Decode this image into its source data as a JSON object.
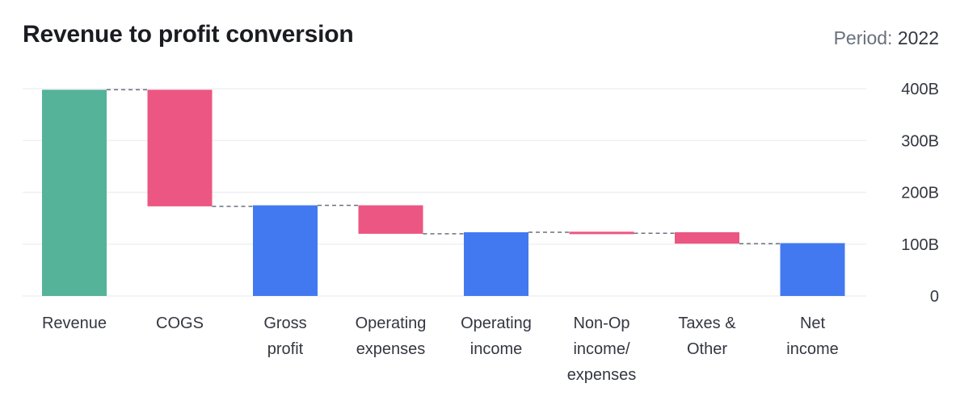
{
  "header": {
    "title": "Revenue to profit conversion",
    "period_label": "Period:",
    "period_value": "2022"
  },
  "colors": {
    "increase": "#54b399",
    "decrease": "#ec5682",
    "total": "#4379f0",
    "grid": "#eef0f3",
    "connector": "#6a717d",
    "axis_text": "#343741"
  },
  "chart_data": {
    "type": "waterfall",
    "title": "Revenue to profit conversion",
    "xlabel": "",
    "ylabel": "",
    "ylim": [
      0,
      400
    ],
    "unit": "B",
    "y_ticks": [
      0,
      100,
      200,
      300,
      400
    ],
    "y_tick_labels": [
      "0",
      "100B",
      "200B",
      "300B",
      "400B"
    ],
    "grid": true,
    "y_axis_position": "right",
    "bars": [
      {
        "category": "Revenue",
        "label_lines": [
          "Revenue"
        ],
        "kind": "increase",
        "start": 0,
        "end": 398
      },
      {
        "category": "COGS",
        "label_lines": [
          "COGS"
        ],
        "kind": "decrease",
        "start": 398,
        "end": 173
      },
      {
        "category": "Gross profit",
        "label_lines": [
          "Gross",
          "profit"
        ],
        "kind": "total",
        "start": 0,
        "end": 175
      },
      {
        "category": "Operating expenses",
        "label_lines": [
          "Operating",
          "expenses"
        ],
        "kind": "decrease",
        "start": 175,
        "end": 120
      },
      {
        "category": "Operating income",
        "label_lines": [
          "Operating",
          "income"
        ],
        "kind": "total",
        "start": 0,
        "end": 123
      },
      {
        "category": "Non-Op income/ expenses",
        "label_lines": [
          "Non-Op",
          "income/",
          "expenses"
        ],
        "kind": "decrease",
        "start": 124,
        "end": 121
      },
      {
        "category": "Taxes & Other",
        "label_lines": [
          "Taxes &",
          "Other"
        ],
        "kind": "decrease",
        "start": 123,
        "end": 101
      },
      {
        "category": "Net income",
        "label_lines": [
          "Net",
          "income"
        ],
        "kind": "total",
        "start": 0,
        "end": 102
      }
    ]
  }
}
